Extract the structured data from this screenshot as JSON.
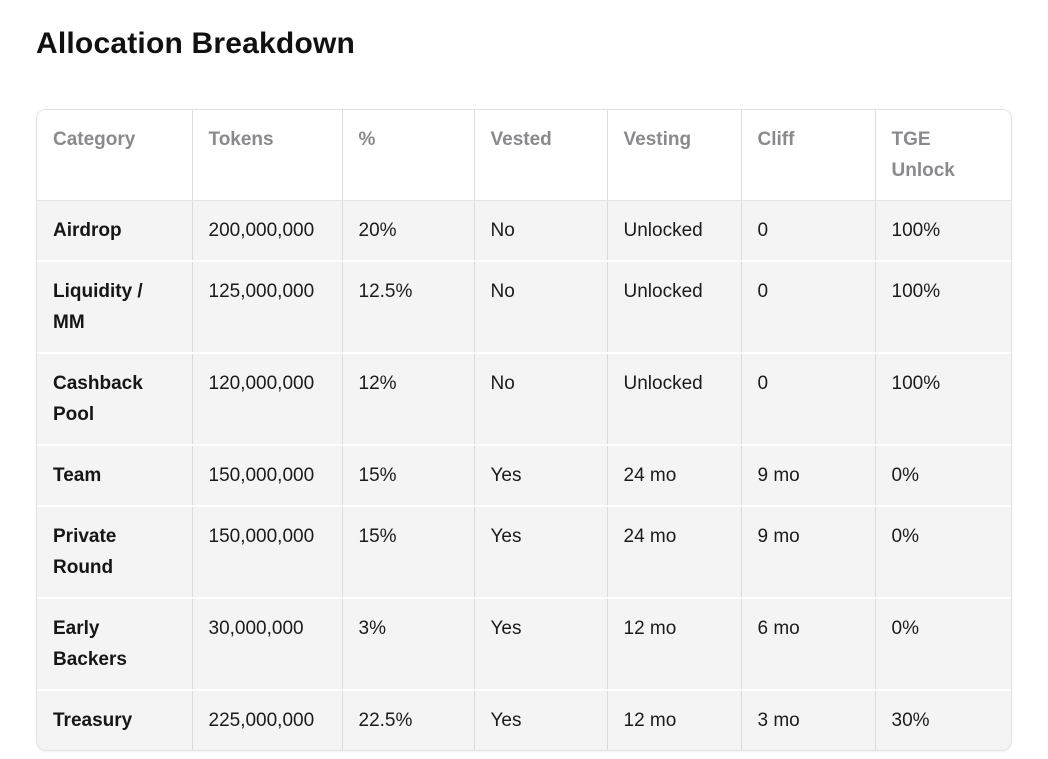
{
  "page": {
    "title": "Allocation Breakdown"
  },
  "colors": {
    "page_background": "#ffffff",
    "header_text": "#8a8a8e",
    "body_text": "#1b1b1b",
    "row_background": "#f4f4f4",
    "header_background": "#ffffff",
    "column_border": "#dcdcdc",
    "row_separator": "#ffffff",
    "outer_border": "#e2e2e2"
  },
  "table": {
    "columns": [
      "Category",
      "Tokens",
      "%",
      "Vested",
      "Vesting",
      "Cliff",
      "TGE Unlock"
    ],
    "column_keys": [
      "category",
      "tokens",
      "percent",
      "vested",
      "vesting",
      "cliff",
      "tge-unlock"
    ],
    "rows": [
      [
        "Airdrop",
        "200,000,000",
        "20%",
        "No",
        "Unlocked",
        "0",
        "100%"
      ],
      [
        "Liquidity / MM",
        "125,000,000",
        "12.5%",
        "No",
        "Unlocked",
        "0",
        "100%"
      ],
      [
        "Cashback Pool",
        "120,000,000",
        "12%",
        "No",
        "Unlocked",
        "0",
        "100%"
      ],
      [
        "Team",
        "150,000,000",
        "15%",
        "Yes",
        "24 mo",
        "9 mo",
        "0%"
      ],
      [
        "Private Round",
        "150,000,000",
        "15%",
        "Yes",
        "24 mo",
        "9 mo",
        "0%"
      ],
      [
        "Early Backers",
        "30,000,000",
        "3%",
        "Yes",
        "12 mo",
        "6 mo",
        "0%"
      ],
      [
        "Treasury",
        "225,000,000",
        "22.5%",
        "Yes",
        "12 mo",
        "3 mo",
        "30%"
      ]
    ]
  }
}
